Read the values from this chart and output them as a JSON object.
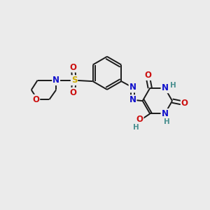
{
  "background_color": "#ebebeb",
  "bond_color": "#1a1a1a",
  "atoms": {
    "N_blue": "#1010cc",
    "O_red": "#cc1010",
    "S_yellow": "#ccaa00",
    "H_teal": "#4a9090"
  },
  "figsize": [
    3.0,
    3.0
  ],
  "dpi": 100,
  "xlim": [
    0,
    10
  ],
  "ylim": [
    0,
    10
  ]
}
